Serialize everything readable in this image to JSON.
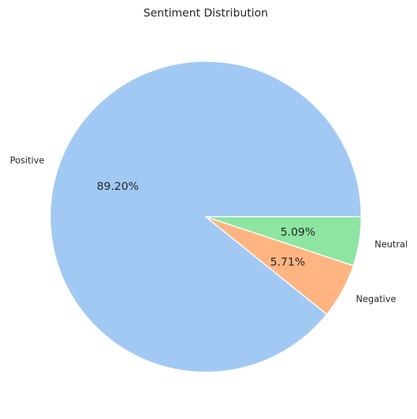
{
  "chart_data": {
    "type": "pie",
    "title": "Sentiment Distribution",
    "start_angle_deg": 0,
    "direction": "counterclockwise",
    "slices": [
      {
        "label": "Positive",
        "value": 89.2,
        "pct_label": "89.20%",
        "color": "#a1c9f4"
      },
      {
        "label": "Negative",
        "value": 5.71,
        "pct_label": "5.71%",
        "color": "#ffb482"
      },
      {
        "label": "Neutral",
        "value": 5.09,
        "pct_label": "5.09%",
        "color": "#8de5a1"
      }
    ],
    "edge_color": "#ffffff"
  }
}
